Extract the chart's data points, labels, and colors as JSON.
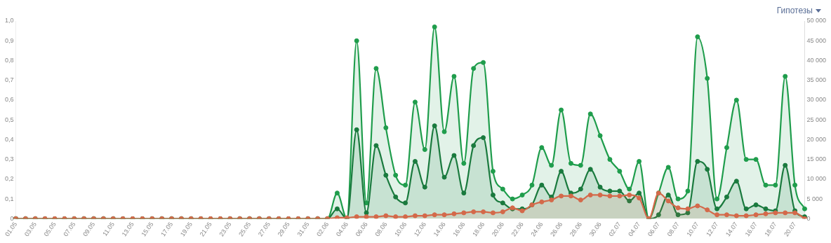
{
  "chart_data": {
    "type": "area",
    "categories": [
      "01.05",
      null,
      "03.05",
      null,
      "05.05",
      null,
      "07.05",
      null,
      "09.05",
      null,
      "11.05",
      null,
      "13.05",
      null,
      "15.05",
      null,
      "17.05",
      null,
      "19.05",
      null,
      "21.05",
      null,
      "23.05",
      null,
      "25.05",
      null,
      "27.05",
      null,
      "29.05",
      null,
      "31.05",
      null,
      "02.06",
      null,
      "04.06",
      null,
      "06.06",
      null,
      "08.06",
      null,
      "10.06",
      null,
      "12.06",
      null,
      "14.06",
      null,
      "16.06",
      null,
      "18.06",
      null,
      "20.06",
      null,
      "22.06",
      null,
      "24.06",
      null,
      "26.06",
      null,
      "28.06",
      null,
      "30.06",
      null,
      "02.07",
      null,
      "04.07",
      null,
      "06.07",
      null,
      "08.07",
      null,
      "10.07",
      null,
      "12.07",
      null,
      "14.07",
      null,
      "16.07",
      null,
      "18.07",
      null,
      "20.07",
      null
    ],
    "series": [
      {
        "color": "#1f9d4c",
        "axis": "y2",
        "values": [
          0,
          0,
          0,
          0,
          0,
          0,
          0,
          0,
          0,
          0,
          0,
          0,
          0,
          0,
          0,
          0,
          0,
          0,
          0,
          0,
          0,
          0,
          0,
          0,
          0,
          0,
          0,
          0,
          0,
          0,
          0,
          0,
          0,
          6500,
          0,
          45000,
          4000,
          38000,
          23000,
          11000,
          8500,
          29500,
          17500,
          48500,
          22000,
          36000,
          14000,
          38000,
          39500,
          12000,
          7500,
          5000,
          6000,
          8500,
          18000,
          13500,
          27500,
          14000,
          13500,
          26500,
          21000,
          15000,
          12000,
          7500,
          14500,
          0,
          6500,
          13000,
          5000,
          7000,
          46000,
          35500,
          5000,
          18000,
          30000,
          15000,
          15000,
          8500,
          8500,
          36000,
          8500,
          2500
        ]
      },
      {
        "color": "#1a7a3e",
        "axis": "y2",
        "values": [
          0,
          0,
          0,
          0,
          0,
          0,
          0,
          0,
          0,
          0,
          0,
          0,
          0,
          0,
          0,
          0,
          0,
          0,
          0,
          0,
          0,
          0,
          0,
          0,
          0,
          0,
          0,
          0,
          0,
          0,
          0,
          0,
          0,
          2500,
          0,
          22500,
          1500,
          18500,
          11000,
          5500,
          4000,
          14500,
          8000,
          23500,
          10500,
          16000,
          6500,
          18500,
          20500,
          6000,
          4000,
          2500,
          2500,
          3500,
          8500,
          5500,
          12000,
          6500,
          7500,
          12500,
          8000,
          7000,
          7000,
          4500,
          6500,
          0,
          1000,
          6000,
          1000,
          1500,
          14500,
          12500,
          2500,
          5500,
          9500,
          2500,
          3500,
          2500,
          2000,
          13500,
          2000,
          500
        ]
      },
      {
        "color": "#d4694a",
        "values": [
          0,
          0,
          0,
          0,
          0,
          0,
          0,
          0,
          0,
          0,
          0,
          0,
          0,
          0,
          0,
          0,
          0,
          0,
          0,
          0,
          0,
          0,
          0,
          0,
          0,
          0,
          0,
          0,
          0,
          0,
          0,
          0,
          0,
          0.005,
          0.005,
          0.01,
          0.01,
          0.01,
          0.015,
          0.01,
          0.01,
          0.015,
          0.015,
          0.02,
          0.02,
          0.025,
          0.03,
          0.035,
          0.035,
          0.03,
          0.035,
          0.055,
          0.04,
          0.07,
          0.085,
          0.095,
          0.115,
          0.115,
          0.095,
          0.12,
          0.12,
          0.115,
          0.115,
          0.12,
          0.105,
          0,
          0.13,
          0.09,
          0.055,
          0.05,
          0.065,
          0.045,
          0.02,
          0.02,
          0.015,
          0.015,
          0.02,
          0.025,
          0.03,
          0.03,
          0.03,
          0
        ]
      }
    ],
    "ylim": [
      0,
      1
    ],
    "yticks": [
      0,
      {
        "value": 0.1,
        "label": "0,1"
      },
      {
        "value": 0.2,
        "label": "0,2"
      },
      {
        "value": 0.3,
        "label": "0,3"
      },
      {
        "value": 0.4,
        "label": "0,4"
      },
      {
        "value": 0.5,
        "label": "0,5"
      },
      {
        "value": 0.6,
        "label": "0,6"
      },
      {
        "value": 0.7,
        "label": "0,7"
      },
      {
        "value": 0.8,
        "label": "0,8"
      },
      {
        "value": 0.9,
        "label": "0,9"
      },
      {
        "value": 1,
        "label": "1,0"
      }
    ],
    "y2lim": [
      0,
      50000
    ],
    "y2ticks": [
      0,
      {
        "value": 5000,
        "label": "5 000"
      },
      {
        "value": 10000,
        "label": "10 000"
      },
      {
        "value": 15000,
        "label": "15 000"
      },
      {
        "value": 20000,
        "label": "20 000"
      },
      {
        "value": 25000,
        "label": "25 000"
      },
      {
        "value": 30000,
        "label": "30 000"
      },
      {
        "value": 35000,
        "label": "35 000"
      },
      {
        "value": 40000,
        "label": "40 000"
      },
      {
        "value": 45000,
        "label": "45 000"
      },
      {
        "value": 50000,
        "label": "50 000"
      }
    ],
    "annotations": [
      "Гипотезы"
    ],
    "marker": "circle",
    "grid": false,
    "legend": false
  }
}
